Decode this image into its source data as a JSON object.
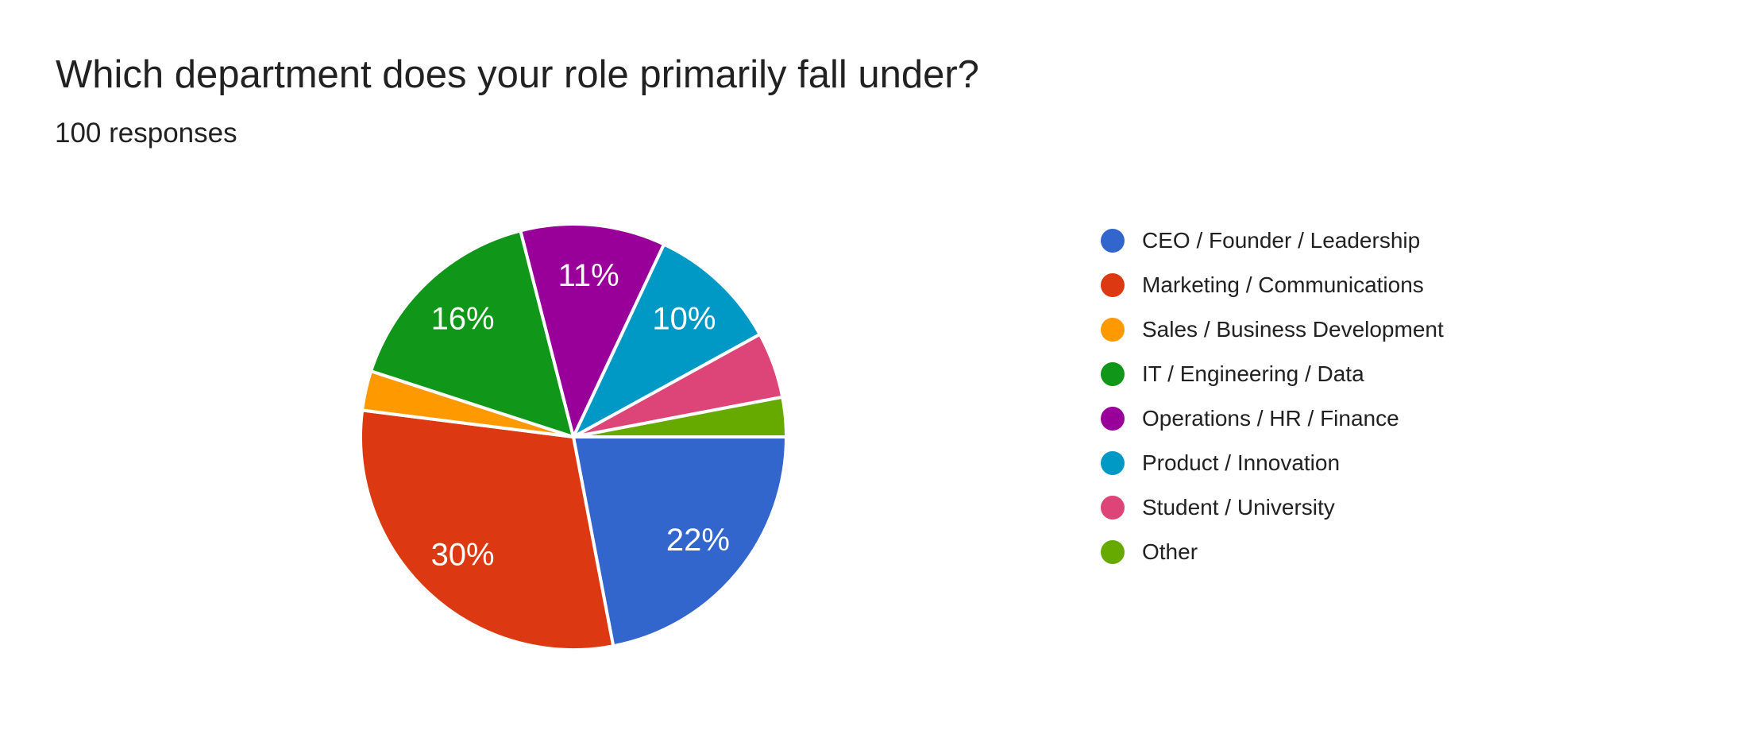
{
  "page": {
    "title": "Which department does your role primarily fall under?",
    "subtitle": "100 responses"
  },
  "colors": {
    "background": "#FFFFFF",
    "text": "#212121",
    "slice_label": "#FFFFFF",
    "slice_separator": "#FFFFFF"
  },
  "chart_data": {
    "type": "pie",
    "title": "Which department does your role primarily fall under?",
    "subtitle": "100 responses",
    "responses_total": 100,
    "legend_position": "right",
    "start_angle_deg": 0,
    "direction": "clockwise",
    "slices": [
      {
        "label": "CEO / Founder / Leadership",
        "value": 22,
        "pct_label": "22%",
        "color": "#3366CC"
      },
      {
        "label": "Marketing / Communications",
        "value": 30,
        "pct_label": "30%",
        "color": "#DC3912"
      },
      {
        "label": "Sales / Business Development",
        "value": 3,
        "pct_label": "",
        "color": "#FF9900"
      },
      {
        "label": "IT / Engineering / Data",
        "value": 16,
        "pct_label": "16%",
        "color": "#109618"
      },
      {
        "label": "Operations / HR / Finance",
        "value": 11,
        "pct_label": "11%",
        "color": "#990099"
      },
      {
        "label": "Product / Innovation",
        "value": 10,
        "pct_label": "10%",
        "color": "#0099C6"
      },
      {
        "label": "Student / University",
        "value": 5,
        "pct_label": "",
        "color": "#DD4477"
      },
      {
        "label": "Other",
        "value": 3,
        "pct_label": "",
        "color": "#66AA00"
      }
    ]
  }
}
